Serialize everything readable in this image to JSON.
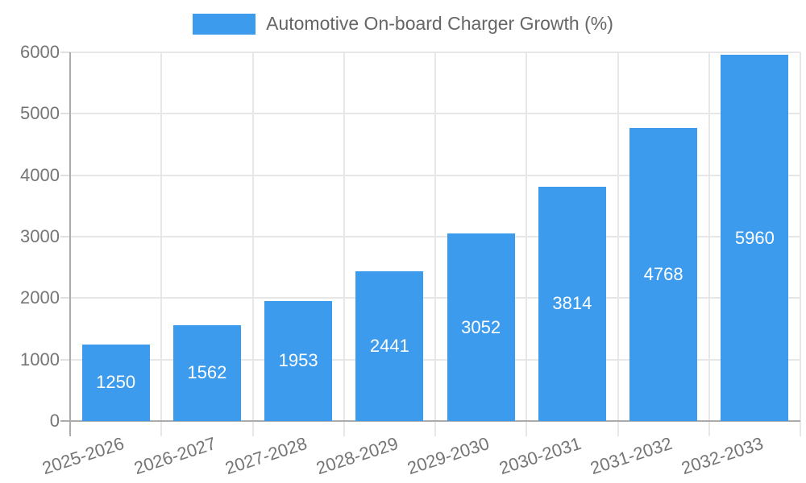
{
  "legend": {
    "label": "Automotive On-board Charger Growth (%)"
  },
  "chart_data": {
    "type": "bar",
    "title": "Automotive On-board Charger Growth (%)",
    "categories": [
      "2025-2026",
      "2026-2027",
      "2027-2028",
      "2028-2029",
      "2029-2030",
      "2030-2031",
      "2031-2032",
      "2032-2033"
    ],
    "values": [
      1250,
      1562,
      1953,
      2441,
      3052,
      3814,
      4768,
      5960
    ],
    "yticks": [
      0,
      1000,
      2000,
      3000,
      4000,
      5000,
      6000
    ],
    "ylim": [
      0,
      6000
    ],
    "xlabel": "",
    "ylabel": "",
    "grid": true,
    "legend_position": "top",
    "bar_color": "#3d9bee",
    "bar_label_color": "#ffffff",
    "tick_label_color": "#757575",
    "grid_color": "#e7e7e7",
    "axis_color": "#acacac"
  }
}
